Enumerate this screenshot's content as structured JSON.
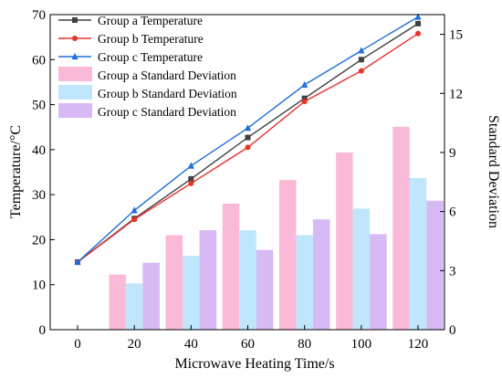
{
  "chart_data": {
    "type": "bar",
    "xlabel": "Microwave Heating Time/s",
    "ylabel_left": "Temperature/°C",
    "ylabel_right": "Standard Deviation",
    "x": [
      0,
      20,
      40,
      60,
      80,
      100,
      120
    ],
    "x_tick_labels": [
      "0",
      "20",
      "40",
      "60",
      "80",
      "100",
      "120"
    ],
    "ylim_left": [
      0,
      70
    ],
    "yticks_left": [
      0,
      10,
      20,
      30,
      40,
      50,
      60,
      70
    ],
    "ylim_right": [
      0,
      16
    ],
    "yticks_right": [
      0,
      3,
      6,
      9,
      12,
      15
    ],
    "legend_position": "top-left",
    "grid": false,
    "series": [
      {
        "name": "Group a Temperature",
        "kind": "line",
        "axis": "left",
        "color": "#404040",
        "marker": "square",
        "values": [
          15.0,
          24.7,
          33.5,
          42.7,
          51.4,
          60.0,
          68.0
        ]
      },
      {
        "name": "Group b Temperature",
        "kind": "line",
        "axis": "left",
        "color": "#e8322a",
        "marker": "circle",
        "values": [
          15.0,
          24.5,
          32.5,
          40.5,
          50.7,
          57.5,
          65.8
        ]
      },
      {
        "name": "Group c Temperature",
        "kind": "line",
        "axis": "left",
        "color": "#1e6fd9",
        "marker": "triangle",
        "values": [
          15.0,
          26.5,
          36.4,
          44.8,
          54.4,
          62.0,
          69.5
        ]
      },
      {
        "name": "Group a Standard Deviation",
        "kind": "bar",
        "axis": "right",
        "color": "#fbb9d8",
        "values": [
          0,
          2.8,
          4.8,
          6.4,
          7.6,
          9.0,
          10.3
        ]
      },
      {
        "name": "Group b Standard Deviation",
        "kind": "bar",
        "axis": "right",
        "color": "#bfe6fb",
        "values": [
          0,
          2.35,
          3.75,
          5.05,
          4.8,
          6.15,
          7.7
        ]
      },
      {
        "name": "Group c Standard Deviation",
        "kind": "bar",
        "axis": "right",
        "color": "#d7b9f3",
        "values": [
          0,
          3.4,
          5.05,
          4.05,
          5.6,
          4.85,
          6.55
        ]
      }
    ]
  }
}
